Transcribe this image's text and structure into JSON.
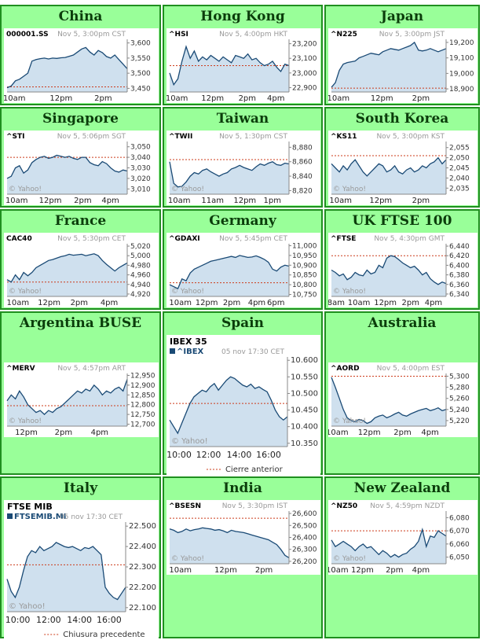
{
  "colors": {
    "cell_bg": "#99ff99",
    "cell_border": "#1f8f1f",
    "chart_bg": "#ffffff",
    "chart_fill": "#cfe0ee",
    "chart_line": "#1a4a75",
    "prev_close": "#cc3b1a",
    "text_grey": "#999999"
  },
  "markets": [
    {
      "region": "China",
      "symbol": "000001.SS",
      "stamp": "Nov 5, 3:00pm CST",
      "yticks": [
        "3,600",
        "3,550",
        "3,500",
        "3,450"
      ],
      "ytick_vals": [
        3600,
        3550,
        3500,
        3450
      ],
      "ylim": [
        3438,
        3612
      ],
      "xticks": [
        "10am",
        "12pm",
        "2pm"
      ],
      "xtick_pos": [
        0.06,
        0.45,
        0.8
      ],
      "prev": 3455,
      "watermark": "",
      "series": [
        3452,
        3458,
        3475,
        3480,
        3490,
        3500,
        3540,
        3545,
        3548,
        3550,
        3547,
        3550,
        3549,
        3551,
        3552,
        3556,
        3560,
        3570,
        3580,
        3585,
        3570,
        3560,
        3575,
        3568,
        3555,
        3550,
        3560,
        3545,
        3530,
        3515
      ]
    },
    {
      "region": "Hong Kong",
      "symbol": "^HSI",
      "stamp": "Nov 5, 4:00pm HKT",
      "yticks": [
        "23,200",
        "23,100",
        "23,000",
        "22,900"
      ],
      "ytick_vals": [
        23200,
        23100,
        23000,
        22900
      ],
      "ylim": [
        22870,
        23230
      ],
      "xticks": [
        "10am",
        "12pm",
        "2pm",
        "4pm"
      ],
      "xtick_pos": [
        0.06,
        0.36,
        0.65,
        0.89
      ],
      "prev": 23050,
      "watermark": "",
      "series": [
        23000,
        22920,
        22960,
        23080,
        23180,
        23100,
        23150,
        23080,
        23110,
        23090,
        23120,
        23100,
        23080,
        23110,
        23090,
        23070,
        23120,
        23110,
        23100,
        23130,
        23090,
        23100,
        23070,
        23050,
        23060,
        23080,
        23040,
        23010,
        23060,
        23050
      ]
    },
    {
      "region": "Japan",
      "symbol": "^N225",
      "stamp": "Nov 5, 3:00pm JST",
      "yticks": [
        "19,200",
        "19,100",
        "19,000",
        "18,900"
      ],
      "ytick_vals": [
        19200,
        19100,
        19000,
        18900
      ],
      "ylim": [
        18880,
        19220
      ],
      "xticks": [
        "10am",
        "12pm",
        "2pm"
      ],
      "xtick_pos": [
        0.06,
        0.44,
        0.78
      ],
      "prev": 18905,
      "watermark": "",
      "series": [
        18910,
        18940,
        19020,
        19060,
        19070,
        19075,
        19080,
        19100,
        19110,
        19120,
        19130,
        19125,
        19120,
        19140,
        19150,
        19160,
        19155,
        19150,
        19160,
        19170,
        19180,
        19200,
        19150,
        19145,
        19150,
        19160,
        19150,
        19140,
        19150,
        19160
      ]
    },
    {
      "region": "Singapore",
      "symbol": "^STI",
      "stamp": "Nov 5, 5:06pm SGT",
      "yticks": [
        "3,050",
        "3,040",
        "3,030",
        "3,020",
        "3,010"
      ],
      "ytick_vals": [
        3050,
        3040,
        3030,
        3020,
        3010
      ],
      "ylim": [
        3005,
        3055
      ],
      "xticks": [
        "10am",
        "12pm",
        "2pm",
        "4pm"
      ],
      "xtick_pos": [
        0.08,
        0.36,
        0.63,
        0.86
      ],
      "prev": 3040,
      "watermark": "© Yahoo!",
      "series": [
        3020,
        3022,
        3030,
        3032,
        3025,
        3028,
        3035,
        3038,
        3040,
        3041,
        3039,
        3040,
        3042,
        3041,
        3040,
        3041,
        3039,
        3038,
        3040,
        3040,
        3035,
        3033,
        3032,
        3036,
        3034,
        3030,
        3027,
        3026,
        3028,
        3027
      ]
    },
    {
      "region": "Taiwan",
      "symbol": "^TWII",
      "stamp": "Nov 5, 1:30pm CST",
      "yticks": [
        "8,880",
        "8,860",
        "8,840",
        "8,820"
      ],
      "ytick_vals": [
        8880,
        8860,
        8840,
        8820
      ],
      "ylim": [
        8815,
        8888
      ],
      "xticks": [
        "10am",
        "11am",
        "12pm",
        "1pm"
      ],
      "xtick_pos": [
        0.08,
        0.36,
        0.63,
        0.86
      ],
      "prev": 8863,
      "watermark": "© Yahoo!",
      "series": [
        8860,
        8830,
        8825,
        8826,
        8832,
        8840,
        8845,
        8843,
        8848,
        8850,
        8846,
        8843,
        8840,
        8843,
        8845,
        8850,
        8852,
        8855,
        8852,
        8850,
        8848,
        8853,
        8857,
        8855,
        8858,
        8860,
        8856,
        8855,
        8858,
        8857
      ]
    },
    {
      "region": "South Korea",
      "symbol": "^KS11",
      "stamp": "Nov 5, 3:00pm KST",
      "yticks": [
        "2,055",
        "2,050",
        "2,045",
        "2,040",
        "2,035"
      ],
      "ytick_vals": [
        2055,
        2050,
        2045,
        2040,
        2035
      ],
      "ylim": [
        2032,
        2058
      ],
      "xticks": [
        "10am",
        "12pm",
        "2pm"
      ],
      "xtick_pos": [
        0.08,
        0.43,
        0.78
      ],
      "prev": 2051,
      "watermark": "© Yahoo!",
      "series": [
        2047,
        2045,
        2043,
        2046,
        2044,
        2047,
        2049,
        2046,
        2043,
        2041,
        2043,
        2045,
        2047,
        2046,
        2043,
        2044,
        2046,
        2043,
        2042,
        2044,
        2045,
        2043,
        2044,
        2046,
        2045,
        2047,
        2048,
        2050,
        2047,
        2049
      ]
    },
    {
      "region": "France",
      "symbol": "CAC40",
      "stamp": "Nov 5, 5:30pm CET",
      "yticks": [
        "5,020",
        "5,000",
        "4,980",
        "4,960",
        "4,940",
        "4,920"
      ],
      "ytick_vals": [
        5020,
        5000,
        4980,
        4960,
        4940,
        4920
      ],
      "ylim": [
        4915,
        5025
      ],
      "xticks": [
        "10am",
        "12pm",
        "2pm",
        "4pm"
      ],
      "xtick_pos": [
        0.09,
        0.35,
        0.6,
        0.85
      ],
      "prev": 4945,
      "watermark": "© Yahoo!",
      "series": [
        4950,
        4945,
        4960,
        4950,
        4965,
        4958,
        4965,
        4975,
        4980,
        4985,
        4990,
        4992,
        4995,
        4998,
        5000,
        5003,
        5001,
        5002,
        5003,
        5000,
        5002,
        5004,
        5000,
        4990,
        4982,
        4975,
        4968,
        4975,
        4980,
        4985
      ]
    },
    {
      "region": "Germany",
      "symbol": "^GDAXI",
      "stamp": "Nov 5, 5:45pm CET",
      "yticks": [
        "11,000",
        "10,950",
        "10,900",
        "10,850",
        "10,800",
        "10,750"
      ],
      "ytick_vals": [
        11000,
        10950,
        10900,
        10850,
        10800,
        10750
      ],
      "ylim": [
        10740,
        11010
      ],
      "xticks": [
        "10am",
        "12pm",
        "2pm",
        "4pm",
        "6pm"
      ],
      "xtick_pos": [
        0.09,
        0.31,
        0.52,
        0.73,
        0.89
      ],
      "prev": 10810,
      "watermark": "© Yahoo!",
      "series": [
        10800,
        10790,
        10780,
        10830,
        10820,
        10860,
        10880,
        10890,
        10900,
        10910,
        10920,
        10925,
        10930,
        10935,
        10940,
        10945,
        10940,
        10950,
        10945,
        10940,
        10942,
        10948,
        10940,
        10930,
        10915,
        10880,
        10870,
        10890,
        10900,
        10895
      ]
    },
    {
      "region": "UK FTSE 100",
      "symbol": "^FTSE",
      "stamp": "Nov 5, 4:30pm GMT",
      "yticks": [
        "6,440",
        "6,420",
        "6,400",
        "6,380",
        "6,360",
        "6,340"
      ],
      "ytick_vals": [
        6440,
        6420,
        6400,
        6380,
        6360,
        6340
      ],
      "ylim": [
        6335,
        6445
      ],
      "xticks": [
        "8am",
        "10am",
        "12pm",
        "2pm",
        "4pm"
      ],
      "xtick_pos": [
        0.04,
        0.24,
        0.47,
        0.69,
        0.89
      ],
      "prev": 6420,
      "watermark": "© Yahoo!",
      "series": [
        6390,
        6385,
        6378,
        6382,
        6370,
        6375,
        6385,
        6380,
        6378,
        6390,
        6382,
        6385,
        6400,
        6395,
        6415,
        6420,
        6418,
        6412,
        6405,
        6400,
        6395,
        6398,
        6390,
        6380,
        6385,
        6372,
        6365,
        6360,
        6365,
        6362
      ]
    },
    {
      "region": "Argentina BUSE",
      "symbol": "^MERV",
      "stamp": "Nov 5, 4:57pm ART",
      "yticks": [
        "12,950",
        "12,900",
        "12,850",
        "12,800",
        "12,750",
        "12,700"
      ],
      "ytick_vals": [
        12950,
        12900,
        12850,
        12800,
        12750,
        12700
      ],
      "ylim": [
        12690,
        12960
      ],
      "xticks": [
        "12pm",
        "2pm",
        "4pm"
      ],
      "xtick_pos": [
        0.16,
        0.47,
        0.77
      ],
      "prev": 12795,
      "watermark": "© Yahoo!",
      "series": [
        12820,
        12850,
        12830,
        12870,
        12840,
        12800,
        12780,
        12760,
        12770,
        12750,
        12770,
        12760,
        12780,
        12790,
        12810,
        12830,
        12850,
        12870,
        12860,
        12880,
        12870,
        12900,
        12880,
        12850,
        12870,
        12860,
        12880,
        12890,
        12870,
        12930
      ]
    },
    {
      "region": "Spain",
      "symbol": "IBEX 35",
      "symbol2": "^IBEX",
      "stamp": "05 nov 17:30 CET",
      "yticks": [
        "10.600",
        "10.550",
        "10.500",
        "10.450",
        "10.400",
        "10.350"
      ],
      "ytick_vals": [
        10600,
        10550,
        10500,
        10450,
        10400,
        10350
      ],
      "ylim": [
        10340,
        10610
      ],
      "xticks": [
        "10:00",
        "12:00",
        "14:00",
        "16:00"
      ],
      "xtick_pos": [
        0.08,
        0.33,
        0.59,
        0.84
      ],
      "prev": 10470,
      "watermark": "© Yahoo!",
      "legend": "Cierre anterior",
      "series": [
        10420,
        10400,
        10380,
        10410,
        10440,
        10470,
        10490,
        10500,
        10510,
        10505,
        10520,
        10530,
        10510,
        10525,
        10540,
        10550,
        10545,
        10535,
        10525,
        10520,
        10528,
        10515,
        10520,
        10512,
        10505,
        10480,
        10450,
        10430,
        10420,
        10430
      ]
    },
    {
      "region": "Australia",
      "symbol": "^AORD",
      "stamp": "Nov 5, 4:00pm EST",
      "yticks": [
        "5,300",
        "5,280",
        "5,260",
        "5,240",
        "5,220"
      ],
      "ytick_vals": [
        5300,
        5280,
        5260,
        5240,
        5220
      ],
      "ylim": [
        5210,
        5305
      ],
      "xticks": [
        "10am",
        "12pm",
        "2pm",
        "4pm"
      ],
      "xtick_pos": [
        0.05,
        0.33,
        0.62,
        0.86
      ],
      "prev": 5300,
      "watermark": "© Yahoo!",
      "series": [
        5298,
        5280,
        5260,
        5240,
        5225,
        5220,
        5218,
        5222,
        5220,
        5215,
        5218,
        5225,
        5228,
        5230,
        5225,
        5228,
        5232,
        5235,
        5230,
        5228,
        5232,
        5235,
        5238,
        5240,
        5242,
        5238,
        5240,
        5243,
        5238,
        5240
      ]
    },
    {
      "region": "Italy",
      "symbol": "FTSE MIB",
      "symbol2": "FTSEMIB.MI",
      "stamp": "05 nov 17:30 CET",
      "yticks": [
        "22.500",
        "22.400",
        "22.300",
        "22.200",
        "22.100"
      ],
      "ytick_vals": [
        22500,
        22400,
        22300,
        22200,
        22100
      ],
      "ylim": [
        22080,
        22520
      ],
      "xticks": [
        "10:00",
        "12:00",
        "14:00",
        "16:00"
      ],
      "xtick_pos": [
        0.09,
        0.35,
        0.61,
        0.86
      ],
      "prev": 22310,
      "watermark": "© Yahoo!",
      "legend": "Chiusura precedente",
      "series": [
        22240,
        22180,
        22150,
        22200,
        22280,
        22350,
        22380,
        22370,
        22400,
        22380,
        22390,
        22400,
        22420,
        22410,
        22400,
        22395,
        22400,
        22390,
        22380,
        22395,
        22390,
        22400,
        22380,
        22360,
        22200,
        22170,
        22150,
        22140,
        22170,
        22200
      ]
    },
    {
      "region": "India",
      "symbol": "^BSESN",
      "stamp": "Nov 5, 3:30pm IST",
      "yticks": [
        "26,600",
        "26,500",
        "26,400",
        "26,300",
        "26,200"
      ],
      "ytick_vals": [
        26600,
        26500,
        26400,
        26300,
        26200
      ],
      "ylim": [
        26180,
        26620
      ],
      "xticks": [
        "10am",
        "12pm",
        "2pm"
      ],
      "xtick_pos": [
        0.09,
        0.47,
        0.79
      ],
      "prev": 26560,
      "watermark": "© Yahoo!",
      "series": [
        26470,
        26460,
        26440,
        26450,
        26470,
        26455,
        26465,
        26470,
        26480,
        26475,
        26470,
        26460,
        26465,
        26455,
        26440,
        26460,
        26450,
        26445,
        26440,
        26430,
        26420,
        26410,
        26400,
        26390,
        26380,
        26360,
        26340,
        26300,
        26250,
        26230
      ]
    },
    {
      "region": "New Zealand",
      "symbol": "^NZ50",
      "stamp": "Nov 5, 4:59pm NZDT",
      "yticks": [
        "6,080",
        "6,070",
        "6,060",
        "6,050"
      ],
      "ytick_vals": [
        6080,
        6070,
        6060,
        6050
      ],
      "ylim": [
        6045,
        6085
      ],
      "xticks": [
        "10am",
        "12pm",
        "2pm",
        "4pm"
      ],
      "xtick_pos": [
        0.05,
        0.27,
        0.55,
        0.78
      ],
      "prev": 6070,
      "watermark": "© Yahoo!",
      "series": [
        6063,
        6058,
        6060,
        6062,
        6060,
        6058,
        6055,
        6058,
        6060,
        6057,
        6058,
        6055,
        6052,
        6055,
        6053,
        6050,
        6052,
        6050,
        6052,
        6053,
        6056,
        6058,
        6062,
        6071,
        6058,
        6066,
        6065,
        6070,
        6068,
        6066
      ]
    }
  ]
}
